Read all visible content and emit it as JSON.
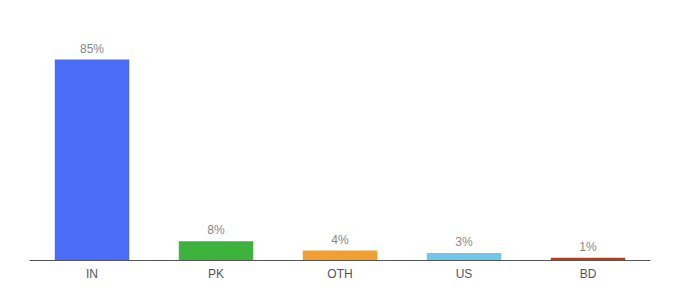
{
  "chart_data": {
    "type": "bar",
    "categories": [
      "IN",
      "PK",
      "OTH",
      "US",
      "BD"
    ],
    "values": [
      85,
      8,
      4,
      3,
      1
    ],
    "value_labels": [
      "85%",
      "8%",
      "4%",
      "3%",
      "1%"
    ],
    "colors": [
      "#4a6cf7",
      "#3db33d",
      "#f0a030",
      "#70c8e8",
      "#b84010"
    ],
    "ylim": [
      0,
      95
    ],
    "grid": false,
    "data_labels": true,
    "tick_labels": "x"
  }
}
